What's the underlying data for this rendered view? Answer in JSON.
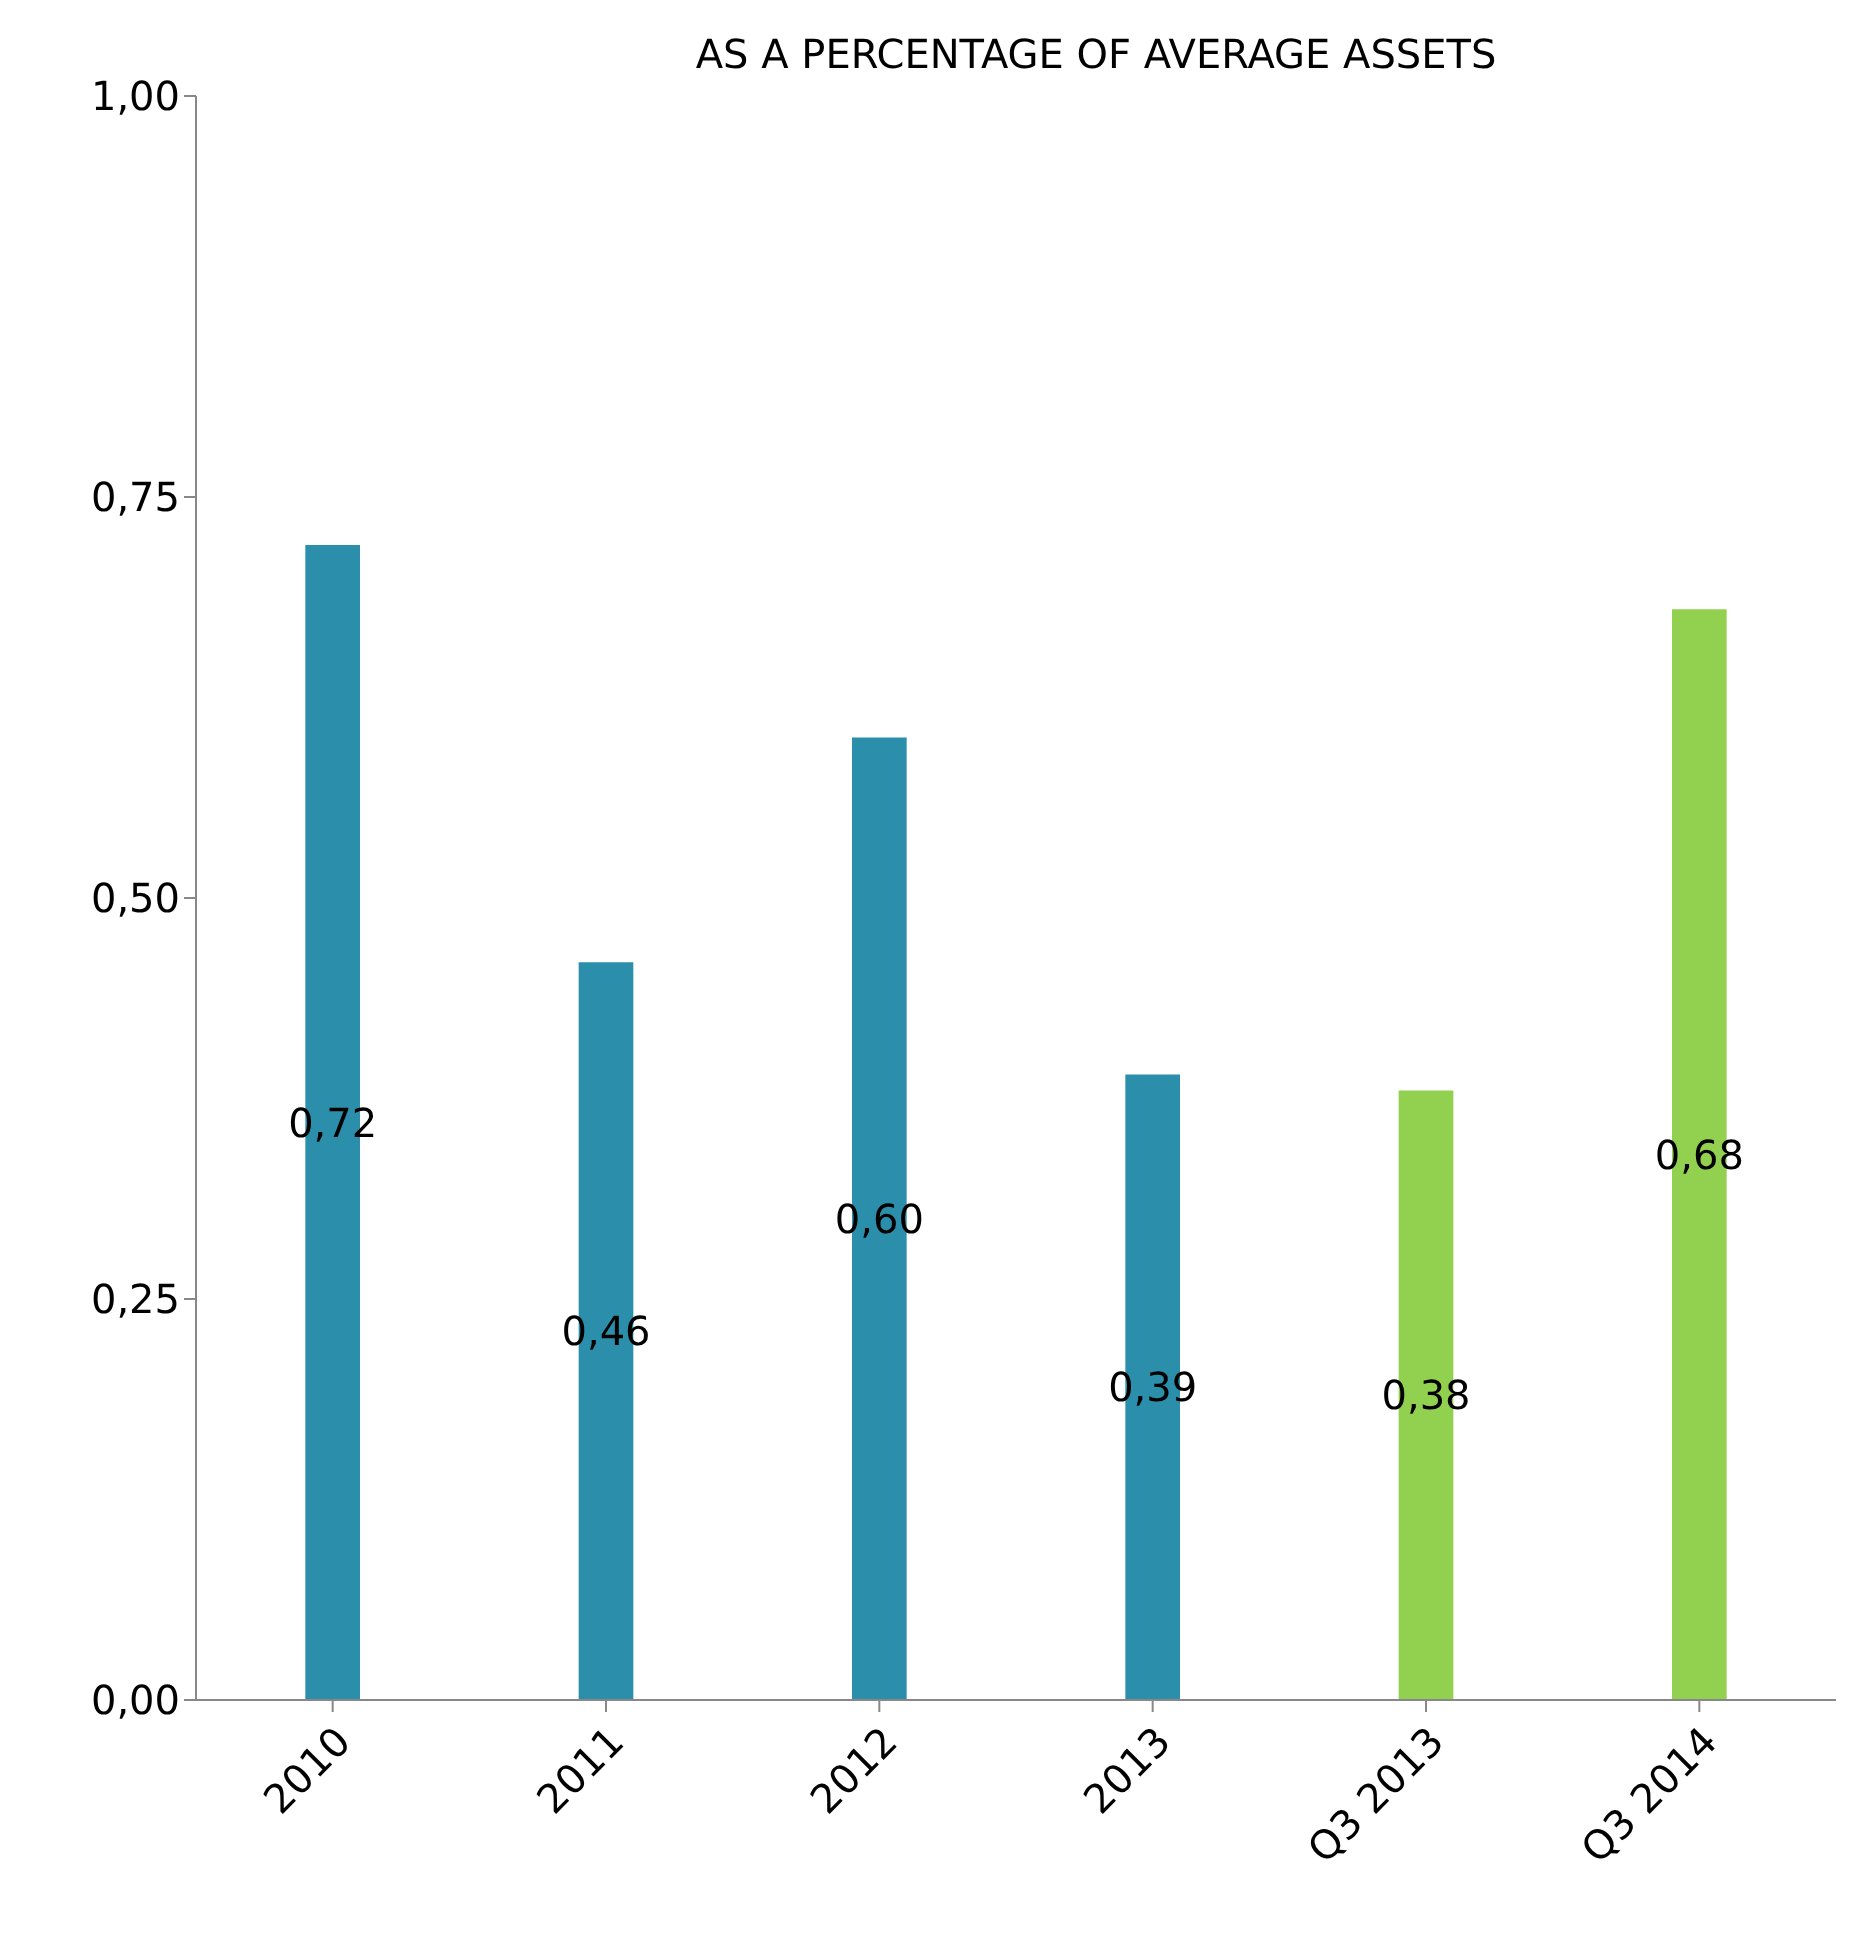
{
  "chart_data": {
    "type": "bar",
    "title": "AS A PERCENTAGE OF AVERAGE ASSETS",
    "categories": [
      "2010",
      "2011",
      "2012",
      "2013",
      "Q3 2013",
      "Q3 2014"
    ],
    "values": [
      0.72,
      0.46,
      0.6,
      0.39,
      0.38,
      0.68
    ],
    "colors": [
      "#2b8fab",
      "#2b8fab",
      "#2b8fab",
      "#2b8fab",
      "#92d050",
      "#92d050"
    ],
    "value_labels": [
      "0,72",
      "0,46",
      "0,60",
      "0,39",
      "0,38",
      "0,68"
    ],
    "ylim": [
      0,
      1
    ],
    "yticks": [
      {
        "value": 0,
        "label": "0,00"
      },
      {
        "value": 0.25,
        "label": "0,25"
      },
      {
        "value": 0.5,
        "label": "0,50"
      },
      {
        "value": 0.75,
        "label": "0,75"
      },
      {
        "value": 1,
        "label": "1,00"
      }
    ],
    "grid": false,
    "legend": false
  }
}
